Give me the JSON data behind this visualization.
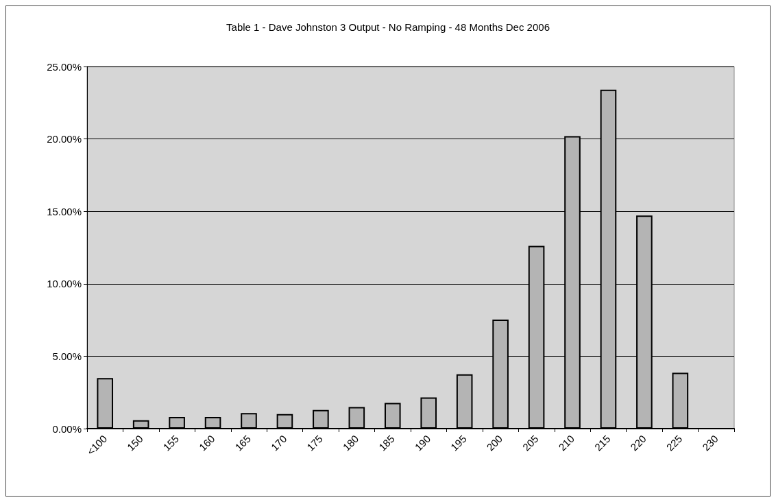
{
  "chart_data": {
    "type": "bar",
    "title": "Table 1 - Dave Johnston 3 Output - No Ramping - 48 Months Dec 2006",
    "categories": [
      "<100",
      "150",
      "155",
      "160",
      "165",
      "170",
      "175",
      "180",
      "185",
      "190",
      "195",
      "200",
      "205",
      "210",
      "215",
      "220",
      "225",
      "230"
    ],
    "values": [
      3.49,
      0.58,
      0.8,
      0.8,
      1.08,
      1.01,
      1.29,
      1.49,
      1.77,
      2.15,
      3.75,
      7.53,
      12.62,
      20.2,
      23.4,
      14.71,
      3.86,
      null
    ],
    "color": "#b4b4b4",
    "ylim": [
      0,
      25
    ],
    "yticks": [
      {
        "value": 0,
        "label": "0.00%"
      },
      {
        "value": 5,
        "label": "5.00%"
      },
      {
        "value": 10,
        "label": "10.00%"
      },
      {
        "value": 15,
        "label": "15.00%"
      },
      {
        "value": 20,
        "label": "20.00%"
      },
      {
        "value": 25,
        "label": "25.00%"
      }
    ],
    "grid": "y"
  }
}
